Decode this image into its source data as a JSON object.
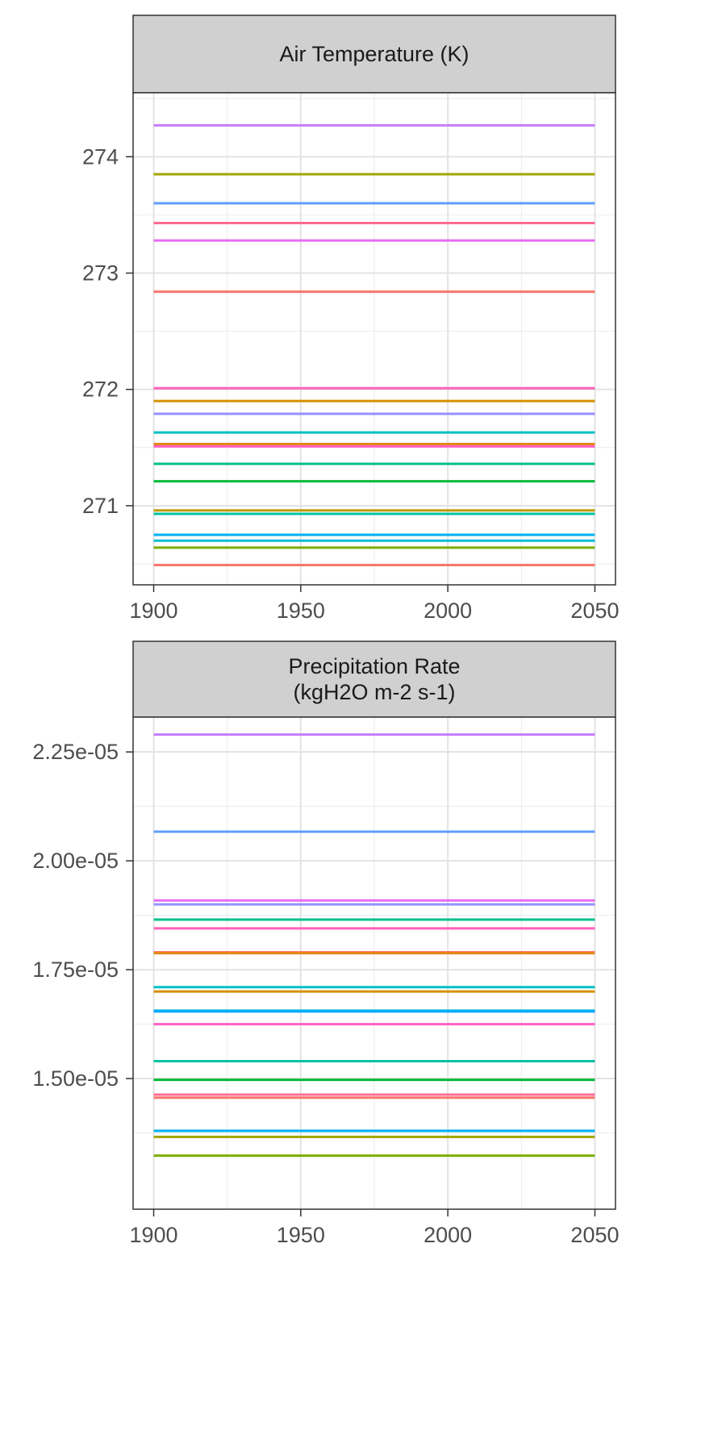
{
  "chart_data": [
    {
      "type": "line",
      "facet_title": [
        "Air Temperature (K)"
      ],
      "xlim": [
        1893,
        2057
      ],
      "ylim": [
        270.32,
        274.55
      ],
      "x_ticks": [
        1900,
        1950,
        2000,
        2050
      ],
      "y_ticks": [
        271,
        272,
        273,
        274
      ],
      "y_tick_labels": [
        "271",
        "272",
        "273",
        "274"
      ],
      "grid": true,
      "series": [
        {
          "color": "#C77CFF",
          "x": [
            1900,
            2050
          ],
          "y": [
            274.27,
            274.27
          ]
        },
        {
          "color": "#A3A500",
          "x": [
            1900,
            2050
          ],
          "y": [
            273.85,
            273.85
          ]
        },
        {
          "color": "#619CFF",
          "x": [
            1900,
            2050
          ],
          "y": [
            273.6,
            273.6
          ]
        },
        {
          "color": "#FF6C91",
          "x": [
            1900,
            2050
          ],
          "y": [
            273.43,
            273.43
          ]
        },
        {
          "color": "#E76BF3",
          "x": [
            1900,
            2050
          ],
          "y": [
            273.28,
            273.28
          ]
        },
        {
          "color": "#F8766D",
          "x": [
            1900,
            2050
          ],
          "y": [
            272.84,
            272.84
          ]
        },
        {
          "color": "#FF62BC",
          "x": [
            1900,
            2050
          ],
          "y": [
            272.01,
            272.01
          ]
        },
        {
          "color": "#D89000",
          "x": [
            1900,
            2050
          ],
          "y": [
            271.9,
            271.9
          ]
        },
        {
          "color": "#9590FF",
          "x": [
            1900,
            2050
          ],
          "y": [
            271.79,
            271.79
          ]
        },
        {
          "color": "#00BFC4",
          "x": [
            1900,
            2050
          ],
          "y": [
            271.63,
            271.63
          ]
        },
        {
          "color": "#E68613",
          "x": [
            1900,
            2050
          ],
          "y": [
            271.53,
            271.53
          ]
        },
        {
          "color": "#FF61C3",
          "x": [
            1900,
            2050
          ],
          "y": [
            271.51,
            271.51
          ]
        },
        {
          "color": "#00C08B",
          "x": [
            1900,
            2050
          ],
          "y": [
            271.36,
            271.36
          ]
        },
        {
          "color": "#00BA38",
          "x": [
            1900,
            2050
          ],
          "y": [
            271.21,
            271.21
          ]
        },
        {
          "color": "#C09B00",
          "x": [
            1900,
            2050
          ],
          "y": [
            270.96,
            270.96
          ]
        },
        {
          "color": "#00C1A3",
          "x": [
            1900,
            2050
          ],
          "y": [
            270.93,
            270.93
          ]
        },
        {
          "color": "#00B0F6",
          "x": [
            1900,
            2050
          ],
          "y": [
            270.75,
            270.75
          ]
        },
        {
          "color": "#00BCD8",
          "x": [
            1900,
            2050
          ],
          "y": [
            270.7,
            270.7
          ]
        },
        {
          "color": "#7CAE00",
          "x": [
            1900,
            2050
          ],
          "y": [
            270.64,
            270.64
          ]
        },
        {
          "color": "#F8766D",
          "x": [
            1900,
            2050
          ],
          "y": [
            270.49,
            270.49
          ]
        }
      ]
    },
    {
      "type": "line",
      "facet_title": [
        "Precipitation Rate",
        "(kgH2O m-2 s-1)"
      ],
      "xlim": [
        1893,
        2057
      ],
      "ylim": [
        1.2e-05,
        2.33e-05
      ],
      "x_ticks": [
        1900,
        1950,
        2000,
        2050
      ],
      "y_ticks": [
        1.5e-05,
        1.75e-05,
        2e-05,
        2.25e-05
      ],
      "y_tick_labels": [
        "1.50e-05",
        "1.75e-05",
        "2.00e-05",
        "2.25e-05"
      ],
      "grid": true,
      "series": [
        {
          "color": "#C77CFF",
          "x": [
            1900,
            2050
          ],
          "y": [
            2.29e-05,
            2.29e-05
          ]
        },
        {
          "color": "#619CFF",
          "x": [
            1900,
            2050
          ],
          "y": [
            2.067e-05,
            2.067e-05
          ]
        },
        {
          "color": "#E76BF3",
          "x": [
            1900,
            2050
          ],
          "y": [
            1.909e-05,
            1.909e-05
          ]
        },
        {
          "color": "#9590FF",
          "x": [
            1900,
            2050
          ],
          "y": [
            1.9e-05,
            1.9e-05
          ]
        },
        {
          "color": "#00C08B",
          "x": [
            1900,
            2050
          ],
          "y": [
            1.865e-05,
            1.865e-05
          ]
        },
        {
          "color": "#FF62BC",
          "x": [
            1900,
            2050
          ],
          "y": [
            1.845e-05,
            1.845e-05
          ]
        },
        {
          "color": "#F8766D",
          "x": [
            1900,
            2050
          ],
          "y": [
            1.79e-05,
            1.79e-05
          ]
        },
        {
          "color": "#E68613",
          "x": [
            1900,
            2050
          ],
          "y": [
            1.788e-05,
            1.788e-05
          ]
        },
        {
          "color": "#00BFC4",
          "x": [
            1900,
            2050
          ],
          "y": [
            1.71e-05,
            1.71e-05
          ]
        },
        {
          "color": "#D89000",
          "x": [
            1900,
            2050
          ],
          "y": [
            1.7e-05,
            1.7e-05
          ]
        },
        {
          "color": "#00BCD8",
          "x": [
            1900,
            2050
          ],
          "y": [
            1.656e-05,
            1.656e-05
          ]
        },
        {
          "color": "#00A9FF",
          "x": [
            1900,
            2050
          ],
          "y": [
            1.654e-05,
            1.654e-05
          ]
        },
        {
          "color": "#FF61C3",
          "x": [
            1900,
            2050
          ],
          "y": [
            1.625e-05,
            1.625e-05
          ]
        },
        {
          "color": "#00C1A3",
          "x": [
            1900,
            2050
          ],
          "y": [
            1.54e-05,
            1.54e-05
          ]
        },
        {
          "color": "#00BA38",
          "x": [
            1900,
            2050
          ],
          "y": [
            1.497e-05,
            1.497e-05
          ]
        },
        {
          "color": "#FF6C91",
          "x": [
            1900,
            2050
          ],
          "y": [
            1.463e-05,
            1.463e-05
          ]
        },
        {
          "color": "#F8766D",
          "x": [
            1900,
            2050
          ],
          "y": [
            1.456e-05,
            1.456e-05
          ]
        },
        {
          "color": "#00B0F6",
          "x": [
            1900,
            2050
          ],
          "y": [
            1.38e-05,
            1.38e-05
          ]
        },
        {
          "color": "#A3A500",
          "x": [
            1900,
            2050
          ],
          "y": [
            1.366e-05,
            1.366e-05
          ]
        },
        {
          "color": "#7CAE00",
          "x": [
            1900,
            2050
          ],
          "y": [
            1.323e-05,
            1.323e-05
          ]
        }
      ]
    }
  ]
}
